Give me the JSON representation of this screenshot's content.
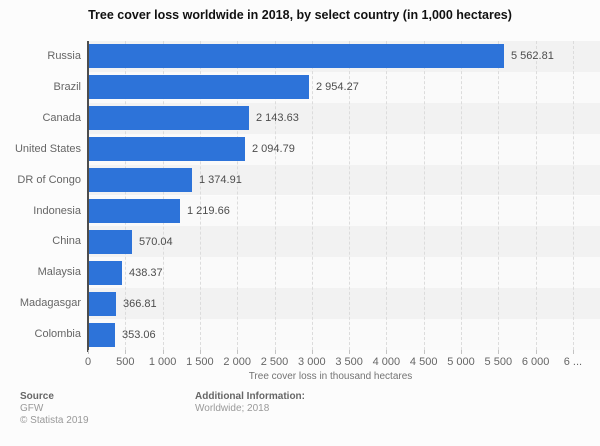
{
  "title": "Tree cover loss worldwide in 2018, by select country (in 1,000 hectares)",
  "chart_data": {
    "type": "bar",
    "orientation": "horizontal",
    "title": "Tree cover loss worldwide in 2018, by select country (in 1,000 hectares)",
    "categories": [
      "Russia",
      "Brazil",
      "Canada",
      "United States",
      "DR of Congo",
      "Indonesia",
      "China",
      "Malaysia",
      "Madagasgar",
      "Colombia"
    ],
    "values": [
      5562.81,
      2954.27,
      2143.63,
      2094.79,
      1374.91,
      1219.66,
      570.04,
      438.37,
      366.81,
      353.06
    ],
    "value_labels": [
      "5 562.81",
      "2 954.27",
      "2 143.63",
      "2 094.79",
      "1 374.91",
      "1 219.66",
      "570.04",
      "438.37",
      "366.81",
      "353.06"
    ],
    "xlabel": "Tree cover loss in thousand hectares",
    "ylabel": "",
    "x_ticks": [
      0,
      500,
      1000,
      1500,
      2000,
      2500,
      3000,
      3500,
      4000,
      4500,
      5000,
      5500,
      6000,
      6500
    ],
    "x_tick_labels": [
      "0",
      "500",
      "1 000",
      "1 500",
      "2 000",
      "2 500",
      "3 000",
      "3 500",
      "4 000",
      "4 500",
      "5 000",
      "5 500",
      "6 000",
      "6 ..."
    ],
    "xlim": [
      0,
      6860
    ],
    "grid": "vertical-dashed",
    "legend": "none",
    "bar_color": "#2d73d9"
  },
  "footer": {
    "source_label": "Source",
    "source_value": "GFW",
    "copyright": "© Statista 2019",
    "additional_label": "Additional Information:",
    "additional_value": "Worldwide; 2018"
  },
  "colors": {
    "bar": "#2d73d9",
    "background": "#fcfcfc",
    "stripe_dark": "#f2f2f2",
    "stripe_light": "#fafafa",
    "axis_line": "#4d4d4d",
    "gridline": "#dcdcdc",
    "label_text": "#666666",
    "value_text": "#4d4d4d",
    "title_text": "#111111",
    "footer_label": "#666666",
    "footer_text": "#999999"
  }
}
